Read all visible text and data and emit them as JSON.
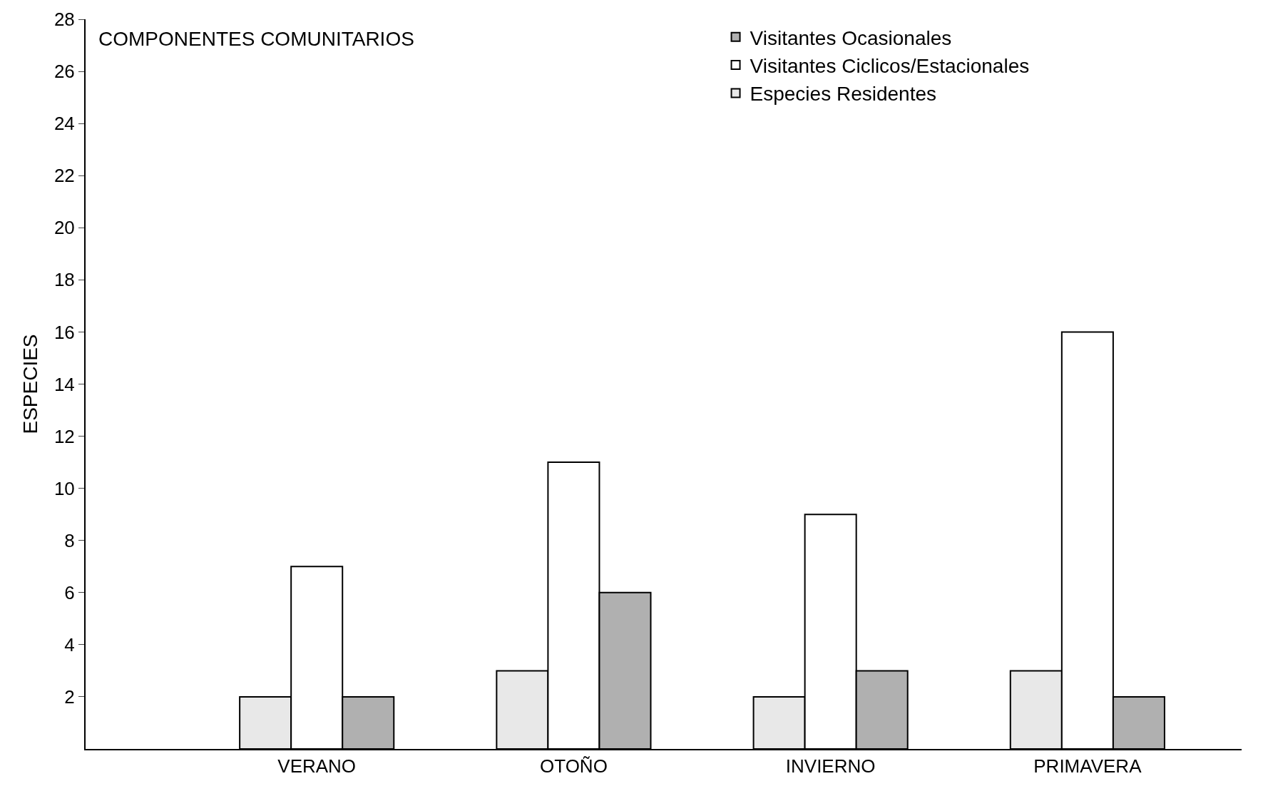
{
  "chart_data": {
    "type": "bar",
    "title": "COMPONENTES COMUNITARIOS",
    "ylabel": "ESPECIES",
    "categories": [
      "VERANO",
      "OTOÑO",
      "INVIERNO",
      "PRIMAVERA"
    ],
    "series": [
      {
        "name": "Especies Residentes",
        "color": "#e8e8e8",
        "values": [
          2,
          3,
          2,
          3
        ]
      },
      {
        "name": "Visitantes Ciclicos/Estacionales",
        "color": "#ffffff",
        "values": [
          7,
          11,
          9,
          16
        ]
      },
      {
        "name": "Visitantes Ocasionales",
        "color": "#b0b0b0",
        "values": [
          2,
          6,
          3,
          2
        ]
      }
    ],
    "ylim": [
      0,
      28
    ],
    "yticks": [
      2,
      4,
      6,
      8,
      10,
      12,
      14,
      16,
      18,
      20,
      22,
      24,
      26,
      28
    ],
    "legend": "top right"
  }
}
